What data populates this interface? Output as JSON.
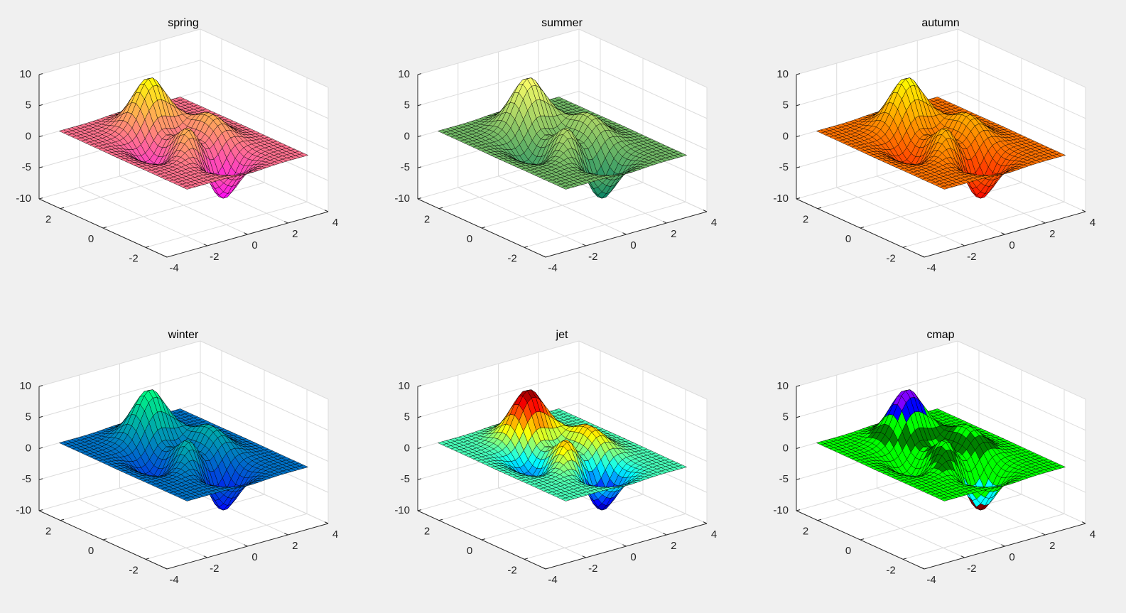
{
  "chart_data": [
    {
      "type": "surface",
      "title": "spring",
      "colormap": [
        "#ff00ff",
        "#ffff00"
      ],
      "discrete": false,
      "xlim": [
        -4,
        4
      ],
      "ylim": [
        -3,
        3
      ],
      "zlim": [
        -10,
        10
      ],
      "xticks": [
        -4,
        -2,
        0,
        2,
        4
      ],
      "yticks": [
        -2,
        0,
        2
      ],
      "zticks": [
        -10,
        -5,
        0,
        5,
        10
      ],
      "grid": true
    },
    {
      "type": "surface",
      "title": "summer",
      "colormap": [
        "#008066",
        "#ffff66"
      ],
      "discrete": false,
      "xlim": [
        -4,
        4
      ],
      "ylim": [
        -3,
        3
      ],
      "zlim": [
        -10,
        10
      ],
      "xticks": [
        -4,
        -2,
        0,
        2,
        4
      ],
      "yticks": [
        -2,
        0,
        2
      ],
      "zticks": [
        -10,
        -5,
        0,
        5,
        10
      ],
      "grid": true
    },
    {
      "type": "surface",
      "title": "autumn",
      "colormap": [
        "#ff0000",
        "#ffff00"
      ],
      "discrete": false,
      "xlim": [
        -4,
        4
      ],
      "ylim": [
        -3,
        3
      ],
      "zlim": [
        -10,
        10
      ],
      "xticks": [
        -4,
        -2,
        0,
        2,
        4
      ],
      "yticks": [
        -2,
        0,
        2
      ],
      "zticks": [
        -10,
        -5,
        0,
        5,
        10
      ],
      "grid": true
    },
    {
      "type": "surface",
      "title": "winter",
      "colormap": [
        "#0000ff",
        "#00ff80"
      ],
      "discrete": false,
      "xlim": [
        -4,
        4
      ],
      "ylim": [
        -3,
        3
      ],
      "zlim": [
        -10,
        10
      ],
      "xticks": [
        -4,
        -2,
        0,
        2,
        4
      ],
      "yticks": [
        -2,
        0,
        2
      ],
      "zticks": [
        -10,
        -5,
        0,
        5,
        10
      ],
      "grid": true
    },
    {
      "type": "surface",
      "title": "jet",
      "colormap": [
        "#00008f",
        "#0000ff",
        "#0080ff",
        "#00ffff",
        "#80ff80",
        "#ffff00",
        "#ff8000",
        "#ff0000",
        "#800000"
      ],
      "discrete": false,
      "xlim": [
        -4,
        4
      ],
      "ylim": [
        -3,
        3
      ],
      "zlim": [
        -10,
        10
      ],
      "xticks": [
        -4,
        -2,
        0,
        2,
        4
      ],
      "yticks": [
        -2,
        0,
        2
      ],
      "zticks": [
        -10,
        -5,
        0,
        5,
        10
      ],
      "grid": true
    },
    {
      "type": "surface",
      "title": "cmap",
      "colormap": [
        "#800000",
        "#00ffff",
        "#00ff00",
        "#00ff00",
        "#008000",
        "#00ff00",
        "#0000ff",
        "#8000ff"
      ],
      "discrete": true,
      "xlim": [
        -4,
        4
      ],
      "ylim": [
        -3,
        3
      ],
      "zlim": [
        -10,
        10
      ],
      "xticks": [
        -4,
        -2,
        0,
        2,
        4
      ],
      "yticks": [
        -2,
        0,
        2
      ],
      "zticks": [
        -10,
        -5,
        0,
        5,
        10
      ],
      "grid": true
    }
  ]
}
